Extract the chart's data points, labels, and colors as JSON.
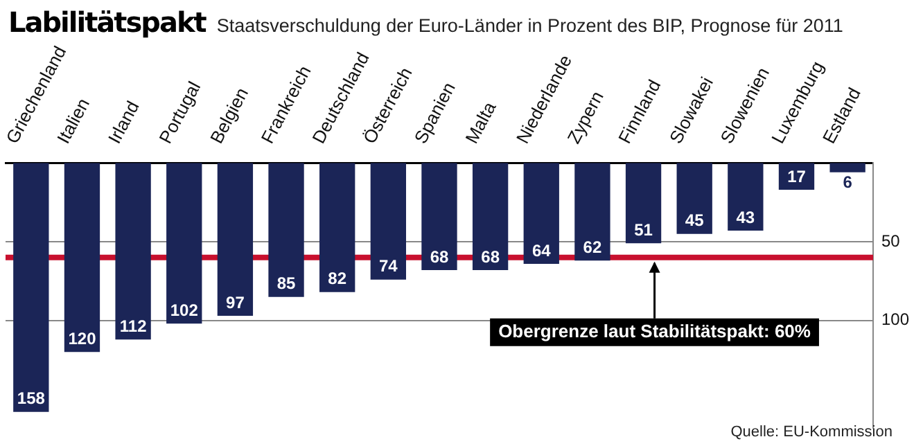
{
  "chart_data": {
    "type": "bar",
    "title": "Labilitätspakt",
    "subtitle": "Staatsverschuldung der Euro-Länder in Prozent des BIP, Prognose für 2011",
    "categories": [
      "Griechenland",
      "Italien",
      "Irland",
      "Portugal",
      "Belgien",
      "Frankreich",
      "Deutschland",
      "Österreich",
      "Spanien",
      "Malta",
      "Niederlande",
      "Zypern",
      "Finnland",
      "Slowakei",
      "Slowenien",
      "Luxemburg",
      "Estland"
    ],
    "values": [
      158,
      120,
      112,
      102,
      97,
      85,
      82,
      74,
      68,
      68,
      64,
      62,
      51,
      45,
      43,
      17,
      6
    ],
    "color": "#1b2557",
    "data_labels": true,
    "ylim": [
      168,
      0
    ],
    "yticks": [
      50,
      100
    ],
    "grid": "y",
    "legend": false,
    "ref_lines": [
      {
        "axis": "y",
        "value": 60,
        "label": "Obergrenze laut Stabilitätspakt: 60%",
        "color": "#c8102e"
      }
    ],
    "annotations": [
      "Quelle: EU-Kommission"
    ]
  }
}
